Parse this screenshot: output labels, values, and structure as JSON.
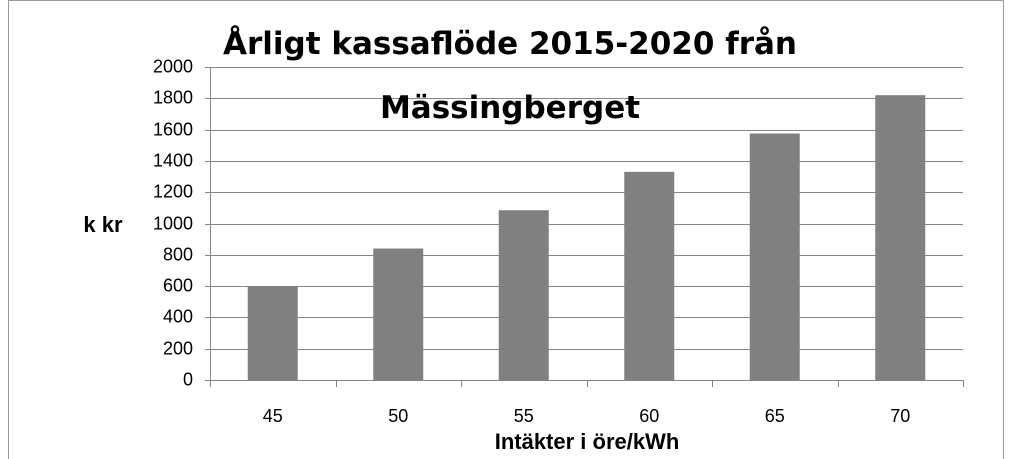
{
  "chart_data": {
    "type": "bar",
    "title": "Årligt kassaflöde 2015-2020 från Mässingberget",
    "x_label": "Intäkter i öre/kWh",
    "y_label": "k kr",
    "categories": [
      "45",
      "50",
      "55",
      "60",
      "65",
      "70"
    ],
    "values": [
      600,
      840,
      1085,
      1330,
      1575,
      1820
    ],
    "color": "#808080",
    "ylim": [
      0,
      2000
    ],
    "yticks": [
      0,
      200,
      400,
      600,
      800,
      1000,
      1200,
      1400,
      1600,
      1800,
      2000
    ],
    "grid": true
  }
}
